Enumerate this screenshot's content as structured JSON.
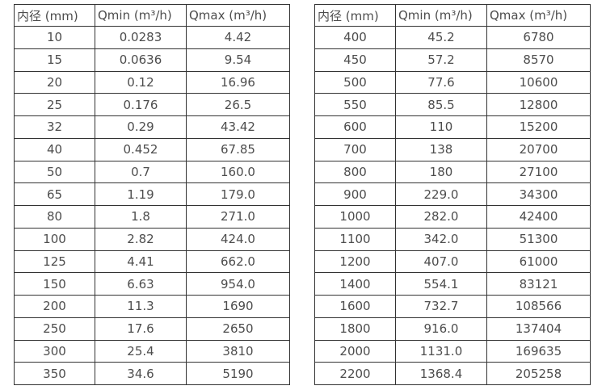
{
  "colors": {
    "background": "#ffffff",
    "border": "#333333",
    "text": "#4d4d4d"
  },
  "tables": [
    {
      "id": "flow-rate-table-small-diameters",
      "columns": [
        "内径 (mm)",
        "Qmin (m³/h)",
        "Qmax (m³/h)"
      ],
      "rows": [
        [
          "10",
          "0.0283",
          "4.42"
        ],
        [
          "15",
          "0.0636",
          "9.54"
        ],
        [
          "20",
          "0.12",
          "16.96"
        ],
        [
          "25",
          "0.176",
          "26.5"
        ],
        [
          "32",
          "0.29",
          "43.42"
        ],
        [
          "40",
          "0.452",
          "67.85"
        ],
        [
          "50",
          "0.7",
          "160.0"
        ],
        [
          "65",
          "1.19",
          "179.0"
        ],
        [
          "80",
          "1.8",
          "271.0"
        ],
        [
          "100",
          "2.82",
          "424.0"
        ],
        [
          "125",
          "4.41",
          "662.0"
        ],
        [
          "150",
          "6.63",
          "954.0"
        ],
        [
          "200",
          "11.3",
          "1690"
        ],
        [
          "250",
          "17.6",
          "2650"
        ],
        [
          "300",
          "25.4",
          "3810"
        ],
        [
          "350",
          "34.6",
          "5190"
        ]
      ]
    },
    {
      "id": "flow-rate-table-large-diameters",
      "columns": [
        "内径 (mm)",
        "Qmin (m³/h)",
        "Qmax (m³/h)"
      ],
      "rows": [
        [
          "400",
          "45.2",
          "6780"
        ],
        [
          "450",
          "57.2",
          "8570"
        ],
        [
          "500",
          "77.6",
          "10600"
        ],
        [
          "550",
          "85.5",
          "12800"
        ],
        [
          "600",
          "110",
          "15200"
        ],
        [
          "700",
          "138",
          "20700"
        ],
        [
          "800",
          "180",
          "27100"
        ],
        [
          "900",
          "229.0",
          "34300"
        ],
        [
          "1000",
          "282.0",
          "42400"
        ],
        [
          "1100",
          "342.0",
          "51300"
        ],
        [
          "1200",
          "407.0",
          "61000"
        ],
        [
          "1400",
          "554.1",
          "83121"
        ],
        [
          "1600",
          "732.7",
          "108566"
        ],
        [
          "1800",
          "916.0",
          "137404"
        ],
        [
          "2000",
          "1131.0",
          "169635"
        ],
        [
          "2200",
          "1368.4",
          "205258"
        ]
      ]
    }
  ]
}
